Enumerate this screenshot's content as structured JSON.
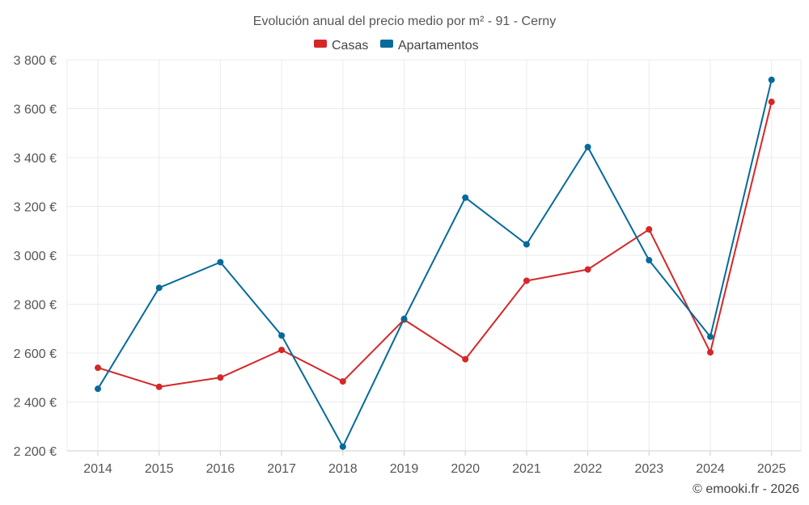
{
  "chart_data": {
    "type": "line",
    "title": "Evolución anual del precio medio por m² - 91 - Cerny",
    "x": [
      "2014",
      "2015",
      "2016",
      "2017",
      "2018",
      "2019",
      "2020",
      "2021",
      "2022",
      "2023",
      "2024",
      "2025"
    ],
    "ylim": [
      2200,
      3800
    ],
    "yticks": [
      2200,
      2400,
      2600,
      2800,
      3000,
      3200,
      3400,
      3600,
      3800
    ],
    "ytick_labels": [
      "2 200 €",
      "2 400 €",
      "2 600 €",
      "2 800 €",
      "3 000 €",
      "3 200 €",
      "3 400 €",
      "3 600 €",
      "3 800 €"
    ],
    "xlabel": "",
    "ylabel": "",
    "grid": true,
    "legend_position": "top-center",
    "series": [
      {
        "name": "Casas",
        "color": "#d62728",
        "values": [
          2540,
          2462,
          2500,
          2613,
          2484,
          2737,
          2575,
          2896,
          2942,
          3106,
          2603,
          3628
        ]
      },
      {
        "name": "Apartamentos",
        "color": "#066a9b",
        "values": [
          2454,
          2867,
          2972,
          2672,
          2217,
          2740,
          3236,
          3045,
          3443,
          2980,
          2667,
          3718
        ]
      }
    ]
  },
  "credit": "© emooki.fr - 2026"
}
